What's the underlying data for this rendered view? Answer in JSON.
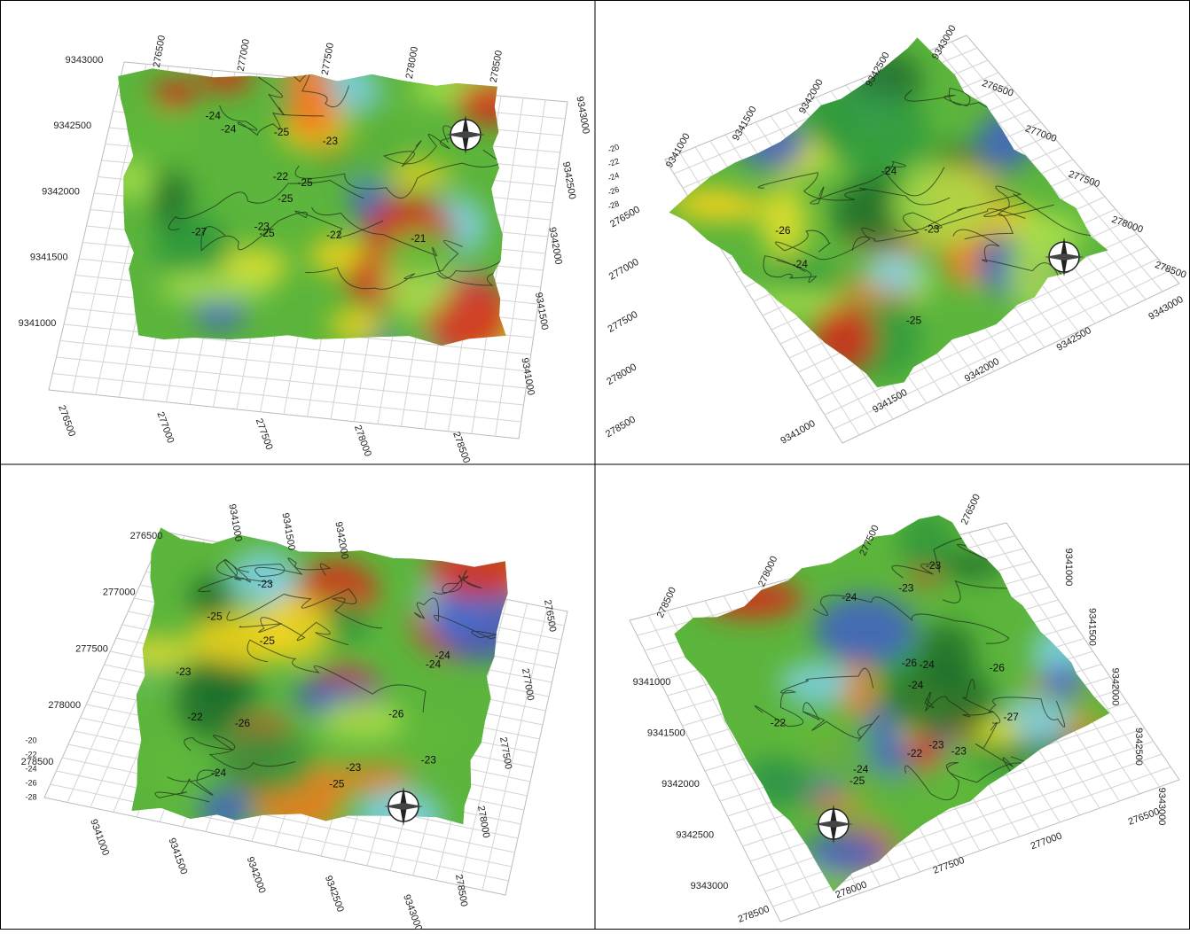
{
  "panels": [
    {
      "axes": {
        "top": [
          "276500",
          "277000",
          "277500",
          "278000",
          "278500"
        ],
        "bottom": [
          "276500",
          "277000",
          "277500",
          "278000",
          "278500"
        ],
        "left": [
          "9343000",
          "9342500",
          "9342000",
          "9341500",
          "9341000"
        ],
        "right": [
          "9343000",
          "9342500",
          "9342000",
          "9341500",
          "9341000"
        ]
      },
      "contour_labels": [
        "-23",
        "-22",
        "-23",
        "-24",
        "-25",
        "-21",
        "-22",
        "-25",
        "-24",
        "-25",
        "-27",
        "-25"
      ]
    },
    {
      "axes": {
        "left": [
          "276500",
          "277000",
          "277500",
          "278000",
          "278500"
        ],
        "bottom": [
          "9341000",
          "9341500",
          "9342000",
          "9342500",
          "9343000"
        ],
        "top": [
          "9341000",
          "9341500",
          "9342000",
          "9342500",
          "9343000"
        ],
        "right": [
          "276500",
          "277000",
          "277500",
          "278000",
          "278500"
        ],
        "z": [
          "-20",
          "-22",
          "-24",
          "-26",
          "-28"
        ]
      },
      "contour_labels": [
        "-23",
        "-24",
        "-25",
        "-26",
        "-24"
      ]
    },
    {
      "axes": {
        "left": [
          "276500",
          "277000",
          "277500",
          "278000",
          "278500"
        ],
        "bottom": [
          "9341000",
          "9341500",
          "9342000",
          "9342500",
          "9343000"
        ],
        "top": [
          "9341000",
          "9341500",
          "9342000"
        ],
        "right": [
          "276500",
          "277000",
          "277500",
          "278000",
          "278500"
        ],
        "z": [
          "-20",
          "-22",
          "-24",
          "-26",
          "-28"
        ]
      },
      "contour_labels": [
        "-22",
        "-23",
        "-24",
        "-23",
        "-25",
        "-24",
        "-25",
        "-26",
        "-25",
        "-24",
        "-23",
        "-26",
        "-23"
      ]
    },
    {
      "axes": {
        "top": [
          "278500",
          "278000",
          "277500",
          "276500"
        ],
        "right": [
          "9341000",
          "9341500",
          "9342000",
          "9342500",
          "9343000"
        ],
        "left": [
          "9341000",
          "9341500",
          "9342000",
          "9342500",
          "9343000"
        ],
        "bottom": [
          "278500",
          "278000",
          "277500",
          "277000",
          "276500"
        ]
      },
      "contour_labels": [
        "-23",
        "-22",
        "-24",
        "-26",
        "-25",
        "-24",
        "-23",
        "-26",
        "-24",
        "-23",
        "-22",
        "-23",
        "-24",
        "-27"
      ]
    }
  ]
}
